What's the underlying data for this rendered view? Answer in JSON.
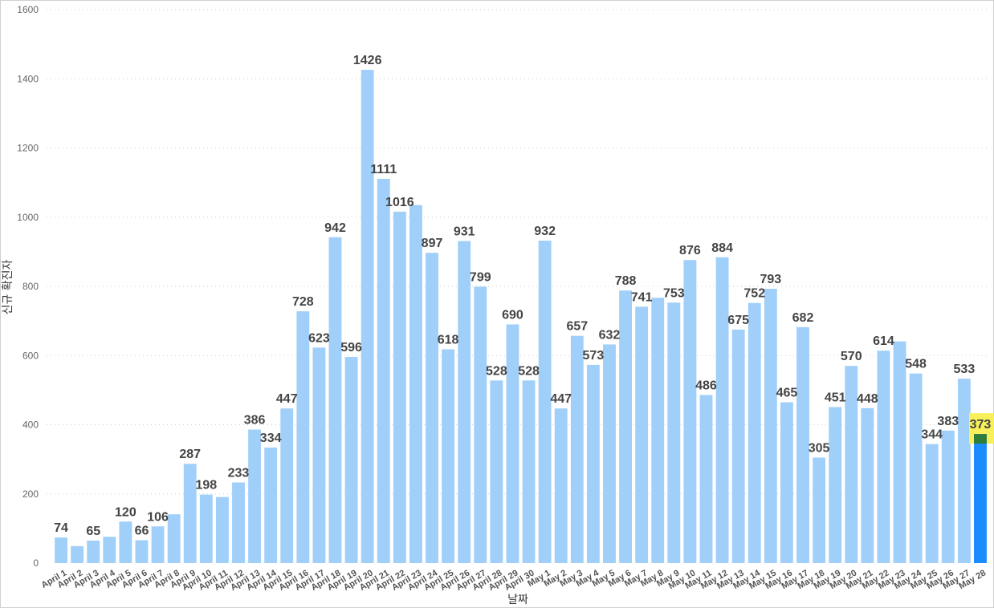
{
  "chart_data": {
    "type": "bar",
    "title": "",
    "xlabel": "날짜",
    "ylabel": "신규 확진자",
    "ylim": [
      0,
      1600
    ],
    "yticks": [
      0,
      200,
      400,
      600,
      800,
      1000,
      1200,
      1400,
      1600
    ],
    "grid": true,
    "categories": [
      "April 1",
      "April 2",
      "April 3",
      "April 4",
      "April 5",
      "April 6",
      "April 7",
      "April 8",
      "April 9",
      "April 10",
      "April 11",
      "April 12",
      "April 13",
      "April 14",
      "April 15",
      "April 16",
      "April 17",
      "April 18",
      "April 19",
      "April 20",
      "April 21",
      "April 22",
      "April 23",
      "April 24",
      "April 25",
      "April 26",
      "April 27",
      "April 28",
      "April 29",
      "April 30",
      "May 1",
      "May 2",
      "May 3",
      "May 4",
      "May 5",
      "May 6",
      "May 7",
      "May 8",
      "May 9",
      "May 10",
      "May 11",
      "May 12",
      "May 13",
      "May 14",
      "May 15",
      "May 16",
      "May 17",
      "May 18",
      "May 19",
      "May 20",
      "May 21",
      "May 22",
      "May 23",
      "May 24",
      "May 25",
      "May 26",
      "May 27",
      "May 28"
    ],
    "values": [
      74,
      49,
      65,
      76,
      120,
      66,
      106,
      141,
      287,
      198,
      191,
      233,
      386,
      334,
      447,
      728,
      623,
      942,
      596,
      1426,
      1111,
      1016,
      1035,
      897,
      618,
      931,
      799,
      528,
      690,
      528,
      932,
      447,
      657,
      573,
      632,
      788,
      741,
      767,
      753,
      876,
      486,
      884,
      675,
      752,
      793,
      465,
      682,
      305,
      451,
      570,
      448,
      614,
      641,
      548,
      344,
      383,
      533,
      373
    ],
    "data_labels": [
      "74",
      "",
      "65",
      "",
      "120",
      "66",
      "106",
      "",
      "287",
      "198",
      "",
      "233",
      "386",
      "334",
      "447",
      "728",
      "623",
      "942",
      "596",
      "1426",
      "1111",
      "1016",
      "",
      "897",
      "618",
      "931",
      "799",
      "528",
      "690",
      "528",
      "932",
      "447",
      "657",
      "573",
      "632",
      "788",
      "741",
      "",
      "753",
      "876",
      "486",
      "884",
      "675",
      "752",
      "793",
      "465",
      "682",
      "305",
      "451",
      "570",
      "448",
      "614",
      "",
      "548",
      "344",
      "383",
      "533",
      "373"
    ],
    "highlight_index": 57,
    "colors": {
      "bar": "#a0cffa",
      "highlight_bar": "#1a8cff",
      "highlight_box": "#f7f05a",
      "highlight_overlap": "#2f7d3a"
    }
  }
}
